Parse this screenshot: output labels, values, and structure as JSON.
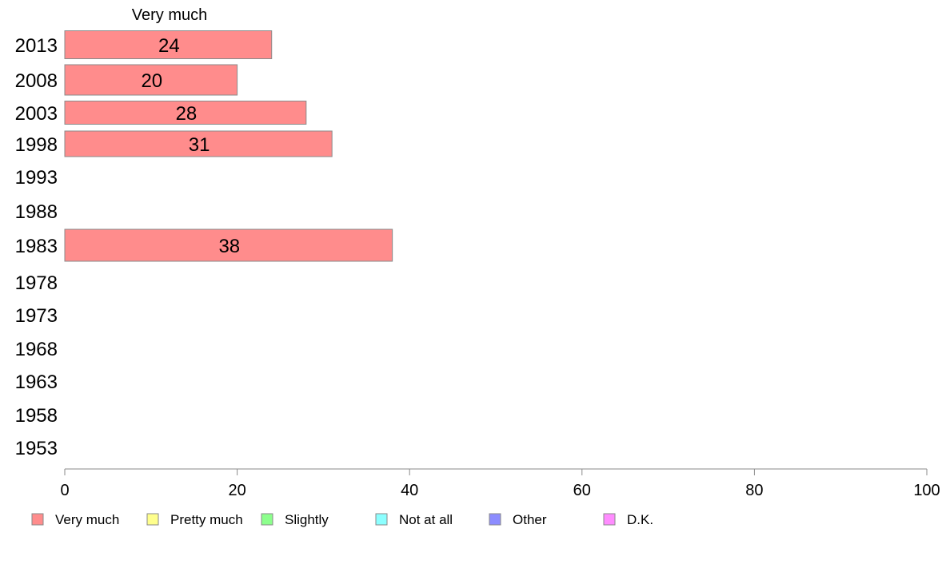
{
  "chart_data": {
    "type": "bar",
    "orientation": "horizontal",
    "stacked": true,
    "categories": [
      "2013",
      "2008",
      "2003",
      "1998",
      "1993",
      "1988",
      "1983",
      "1978",
      "1973",
      "1968",
      "1963",
      "1958",
      "1953"
    ],
    "series": [
      {
        "name": "Very much",
        "color": "#ff8c8c",
        "values": [
          24,
          20,
          28,
          31,
          null,
          null,
          38,
          null,
          null,
          null,
          null,
          null,
          null
        ]
      },
      {
        "name": "Pretty much",
        "color": "#ffff8c",
        "values": [
          null,
          null,
          null,
          null,
          null,
          null,
          null,
          null,
          null,
          null,
          null,
          null,
          null
        ]
      },
      {
        "name": "Slightly",
        "color": "#8cff8c",
        "values": [
          null,
          null,
          null,
          null,
          null,
          null,
          null,
          null,
          null,
          null,
          null,
          null,
          null
        ]
      },
      {
        "name": "Not at all",
        "color": "#8cffff",
        "values": [
          null,
          null,
          null,
          null,
          null,
          null,
          null,
          null,
          null,
          null,
          null,
          null,
          null
        ]
      },
      {
        "name": "Other",
        "color": "#8c8cff",
        "values": [
          null,
          null,
          null,
          null,
          null,
          null,
          null,
          null,
          null,
          null,
          null,
          null,
          null
        ]
      },
      {
        "name": "D.K.",
        "color": "#ff8cff",
        "values": [
          null,
          null,
          null,
          null,
          null,
          null,
          null,
          null,
          null,
          null,
          null,
          null,
          null
        ]
      }
    ],
    "series_header": "Very much",
    "xlim": [
      0,
      100
    ],
    "xticks": [
      0,
      20,
      40,
      60,
      80,
      100
    ],
    "grid": false,
    "legend_position": "bottom"
  }
}
